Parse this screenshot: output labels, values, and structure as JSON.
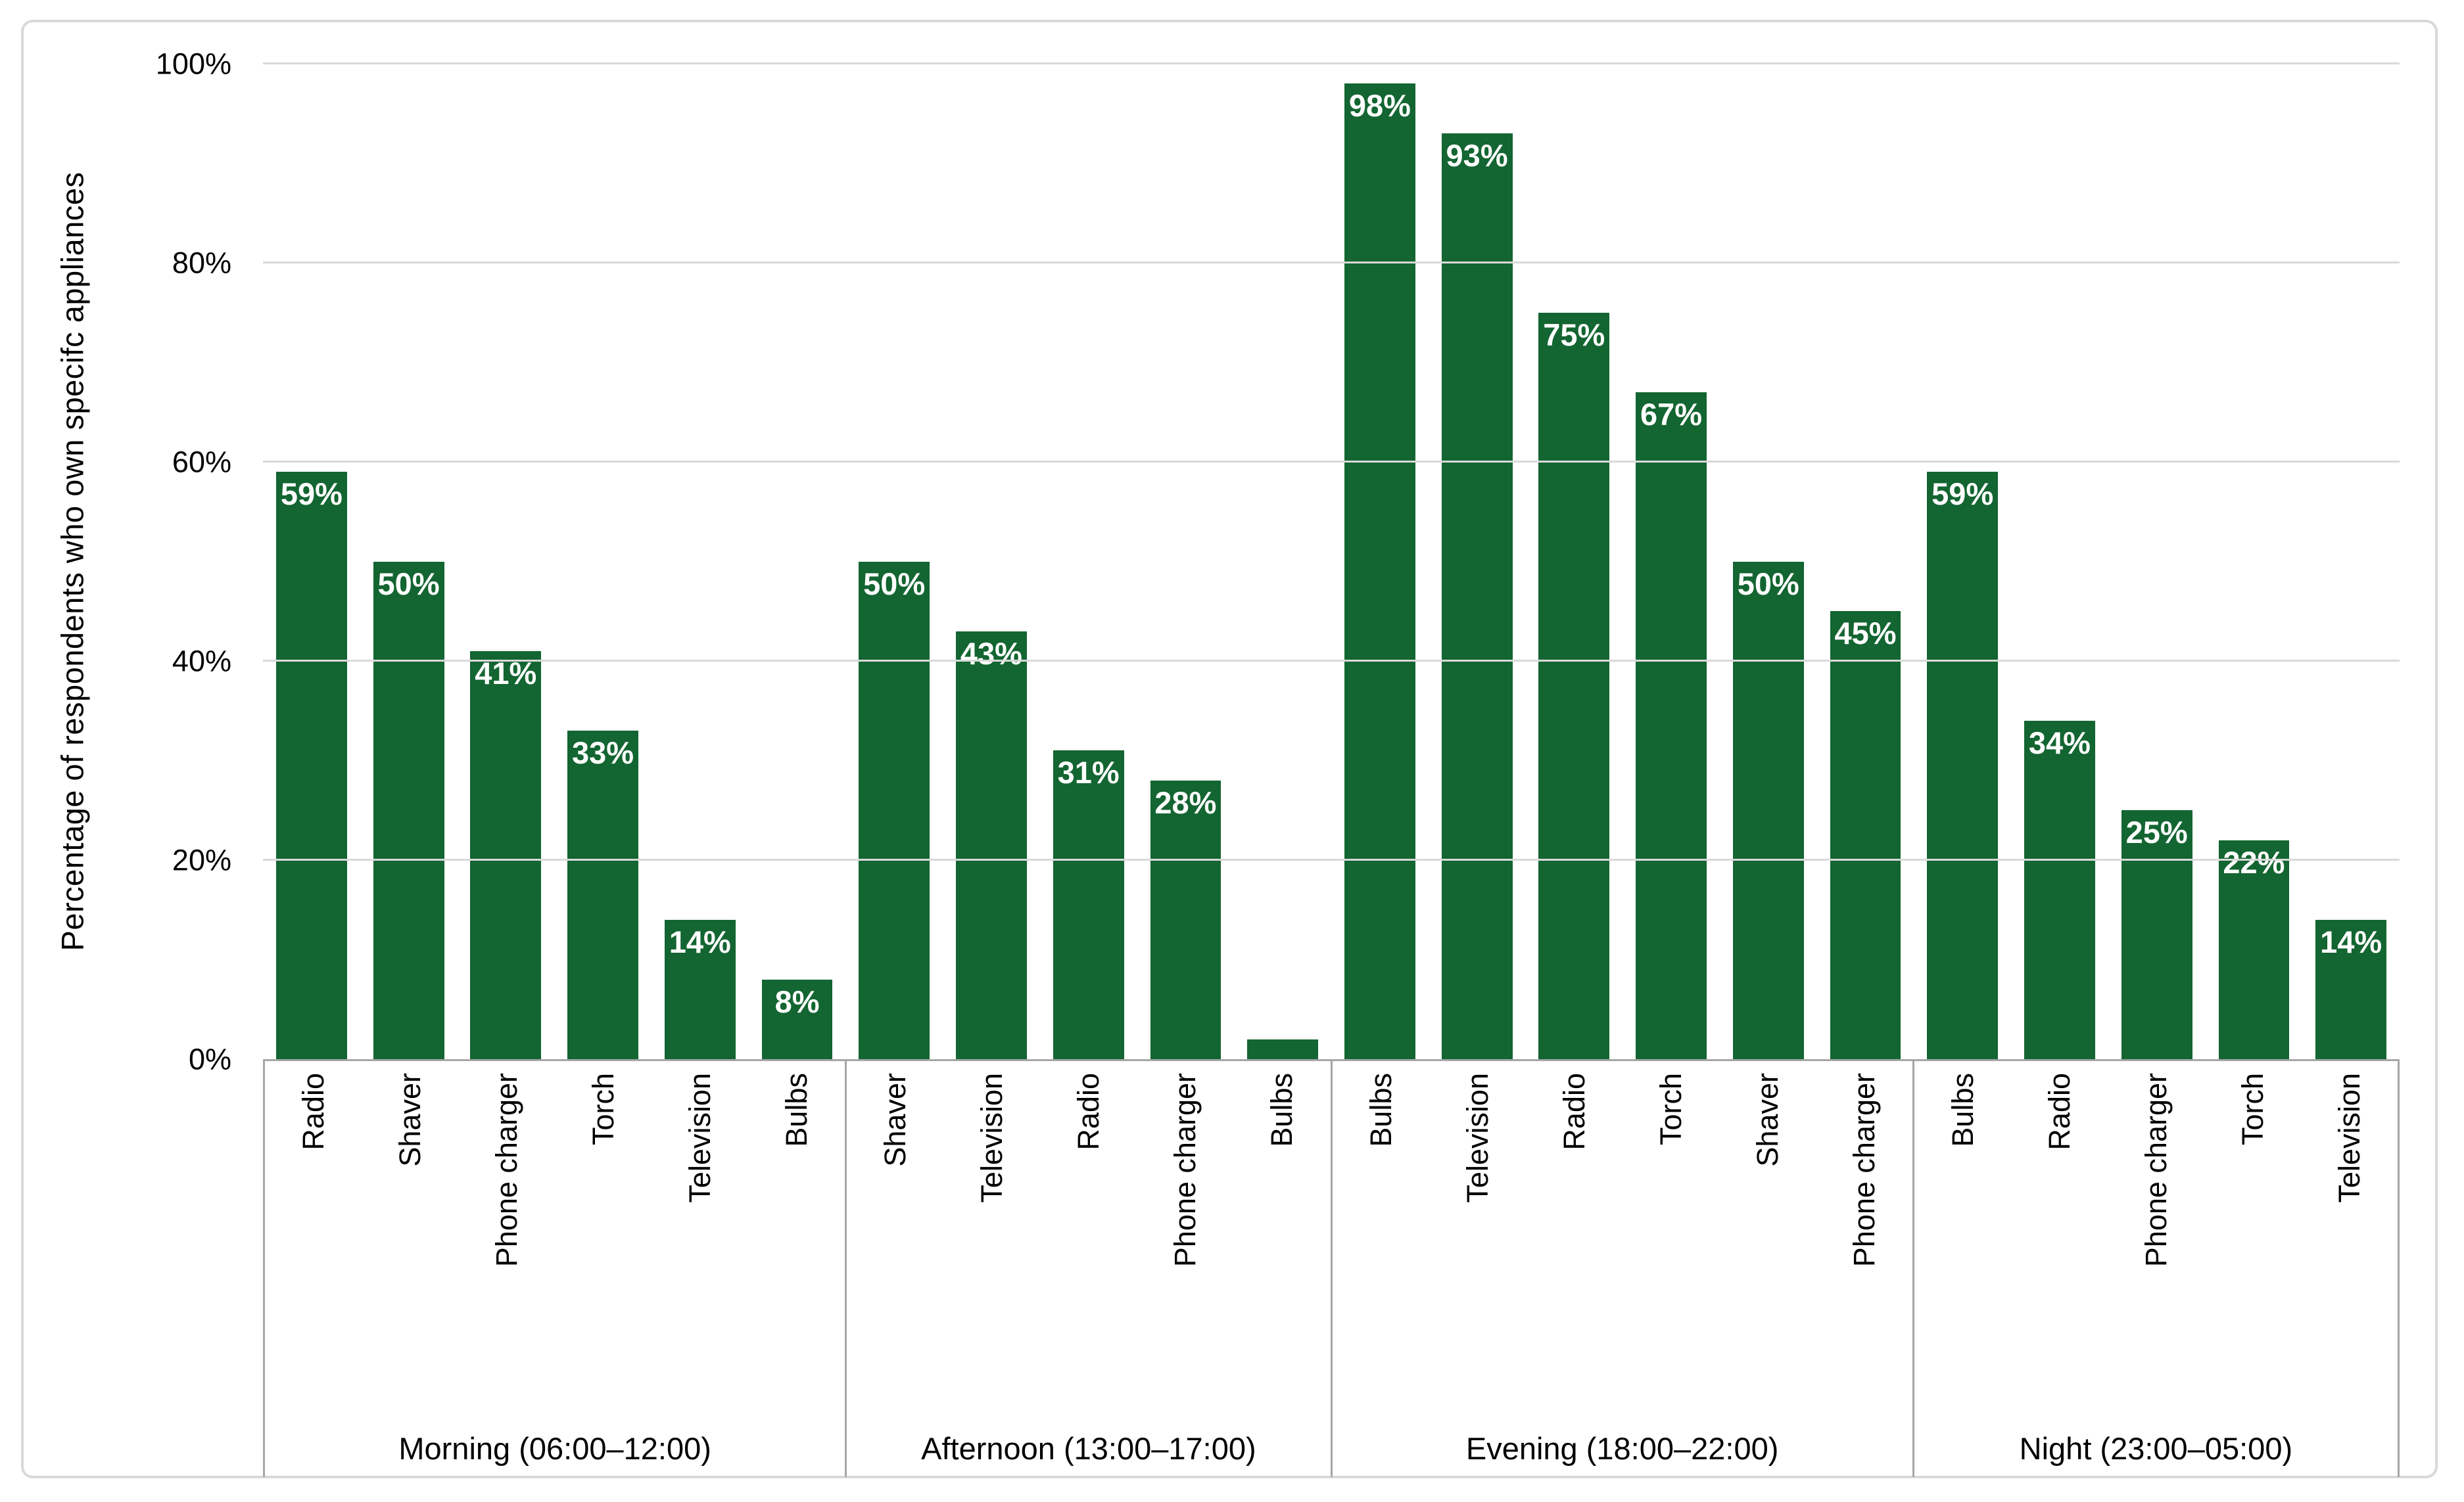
{
  "chart_data": {
    "type": "bar",
    "title": "",
    "ylabel": "Percentage of respondents who own specifc appliances",
    "xlabel": "",
    "ylim": [
      0,
      100
    ],
    "ytick_step": 20,
    "yticks": [
      "0%",
      "20%",
      "40%",
      "60%",
      "80%",
      "100%"
    ],
    "grid": true,
    "legend": false,
    "groups": [
      {
        "label": "Morning (06:00–12:00)",
        "bars": [
          {
            "category": "Radio",
            "value": 59,
            "label": "59%"
          },
          {
            "category": "Shaver",
            "value": 50,
            "label": "50%"
          },
          {
            "category": "Phone charger",
            "value": 41,
            "label": "41%"
          },
          {
            "category": "Torch",
            "value": 33,
            "label": "33%"
          },
          {
            "category": "Television",
            "value": 14,
            "label": "14%"
          },
          {
            "category": "Bulbs",
            "value": 8,
            "label": "8%"
          }
        ]
      },
      {
        "label": "Afternoon (13:00–17:00)",
        "bars": [
          {
            "category": "Shaver",
            "value": 50,
            "label": "50%"
          },
          {
            "category": "Television",
            "value": 43,
            "label": "43%"
          },
          {
            "category": "Radio",
            "value": 31,
            "label": "31%"
          },
          {
            "category": "Phone charger",
            "value": 28,
            "label": "28%"
          },
          {
            "category": "Bulbs",
            "value": 2,
            "label": ""
          }
        ]
      },
      {
        "label": "Evening (18:00–22:00)",
        "bars": [
          {
            "category": "Bulbs",
            "value": 98,
            "label": "98%"
          },
          {
            "category": "Television",
            "value": 93,
            "label": "93%"
          },
          {
            "category": "Radio",
            "value": 75,
            "label": "75%"
          },
          {
            "category": "Torch",
            "value": 67,
            "label": "67%"
          },
          {
            "category": "Shaver",
            "value": 50,
            "label": "50%"
          },
          {
            "category": "Phone charger",
            "value": 45,
            "label": "45%"
          }
        ]
      },
      {
        "label": "Night (23:00–05:00)",
        "bars": [
          {
            "category": "Bulbs",
            "value": 59,
            "label": "59%"
          },
          {
            "category": "Radio",
            "value": 34,
            "label": "34%"
          },
          {
            "category": "Phone charger",
            "value": 25,
            "label": "25%"
          },
          {
            "category": "Torch",
            "value": 22,
            "label": "22%"
          },
          {
            "category": "Television",
            "value": 14,
            "label": "14%"
          }
        ]
      }
    ]
  },
  "colors": {
    "bar": "#136531",
    "data_label": "#ffffff",
    "gridline": "#d9d9d9",
    "axis_line": "#a6a6a6",
    "frame_border": "#d9d9d9",
    "text": "#000000",
    "background": "#ffffff"
  }
}
